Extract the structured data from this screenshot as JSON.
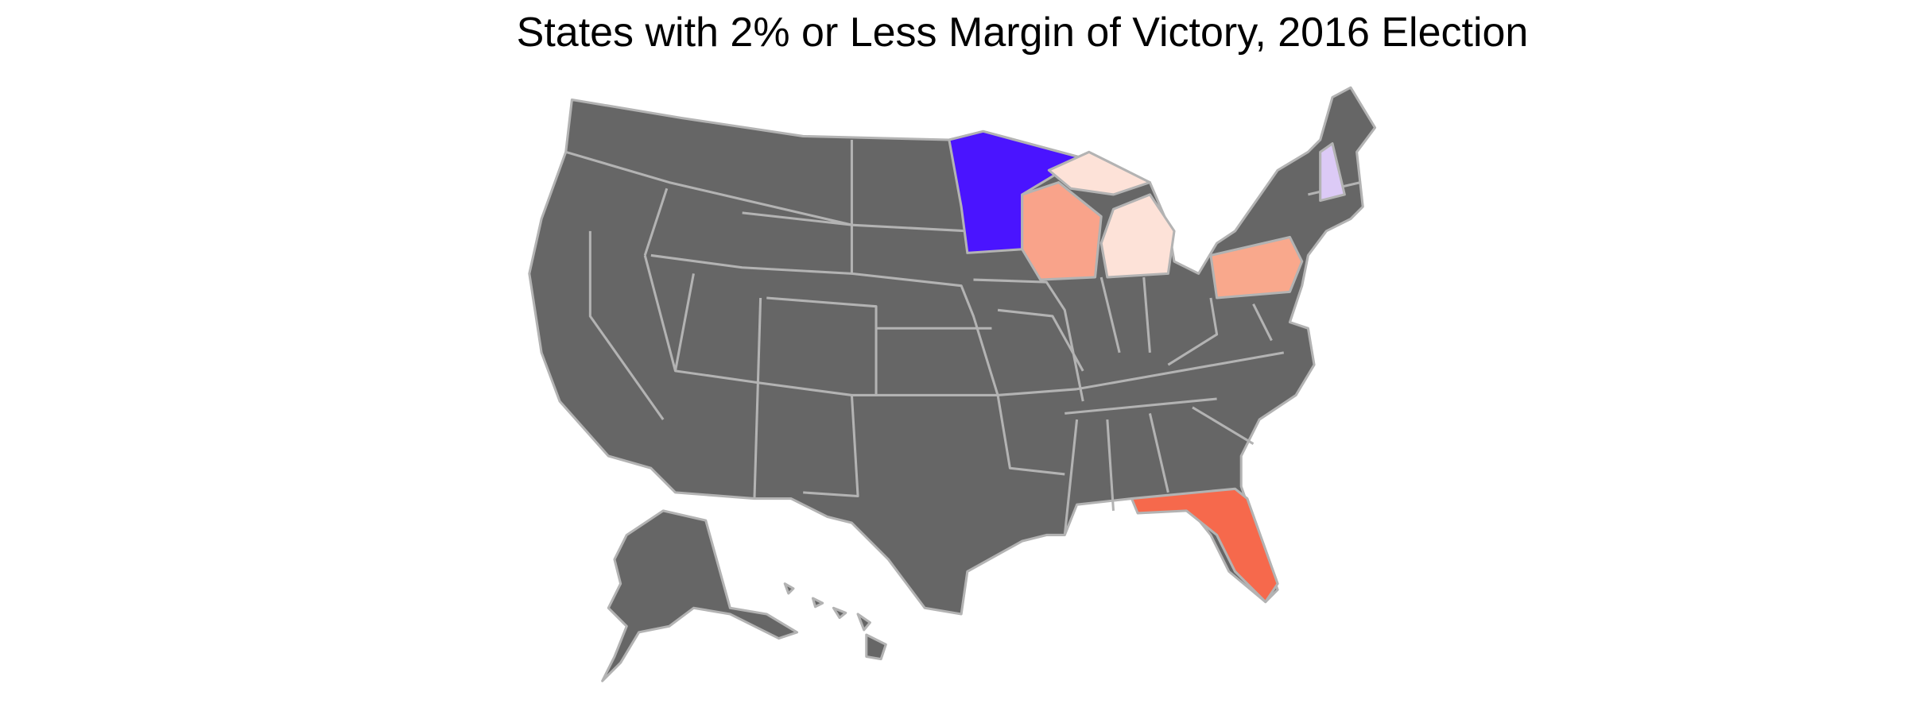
{
  "title": "States with 2% or Less Margin of Victory, 2016 Election",
  "map": {
    "fill": "#666666",
    "stroke": "#b3b3b3",
    "highlight_fills": [
      "#4a14ff",
      "#f9a38a",
      "#fde2d8",
      "#f9a88c",
      "#dccaf6",
      "#f6694c"
    ]
  }
}
